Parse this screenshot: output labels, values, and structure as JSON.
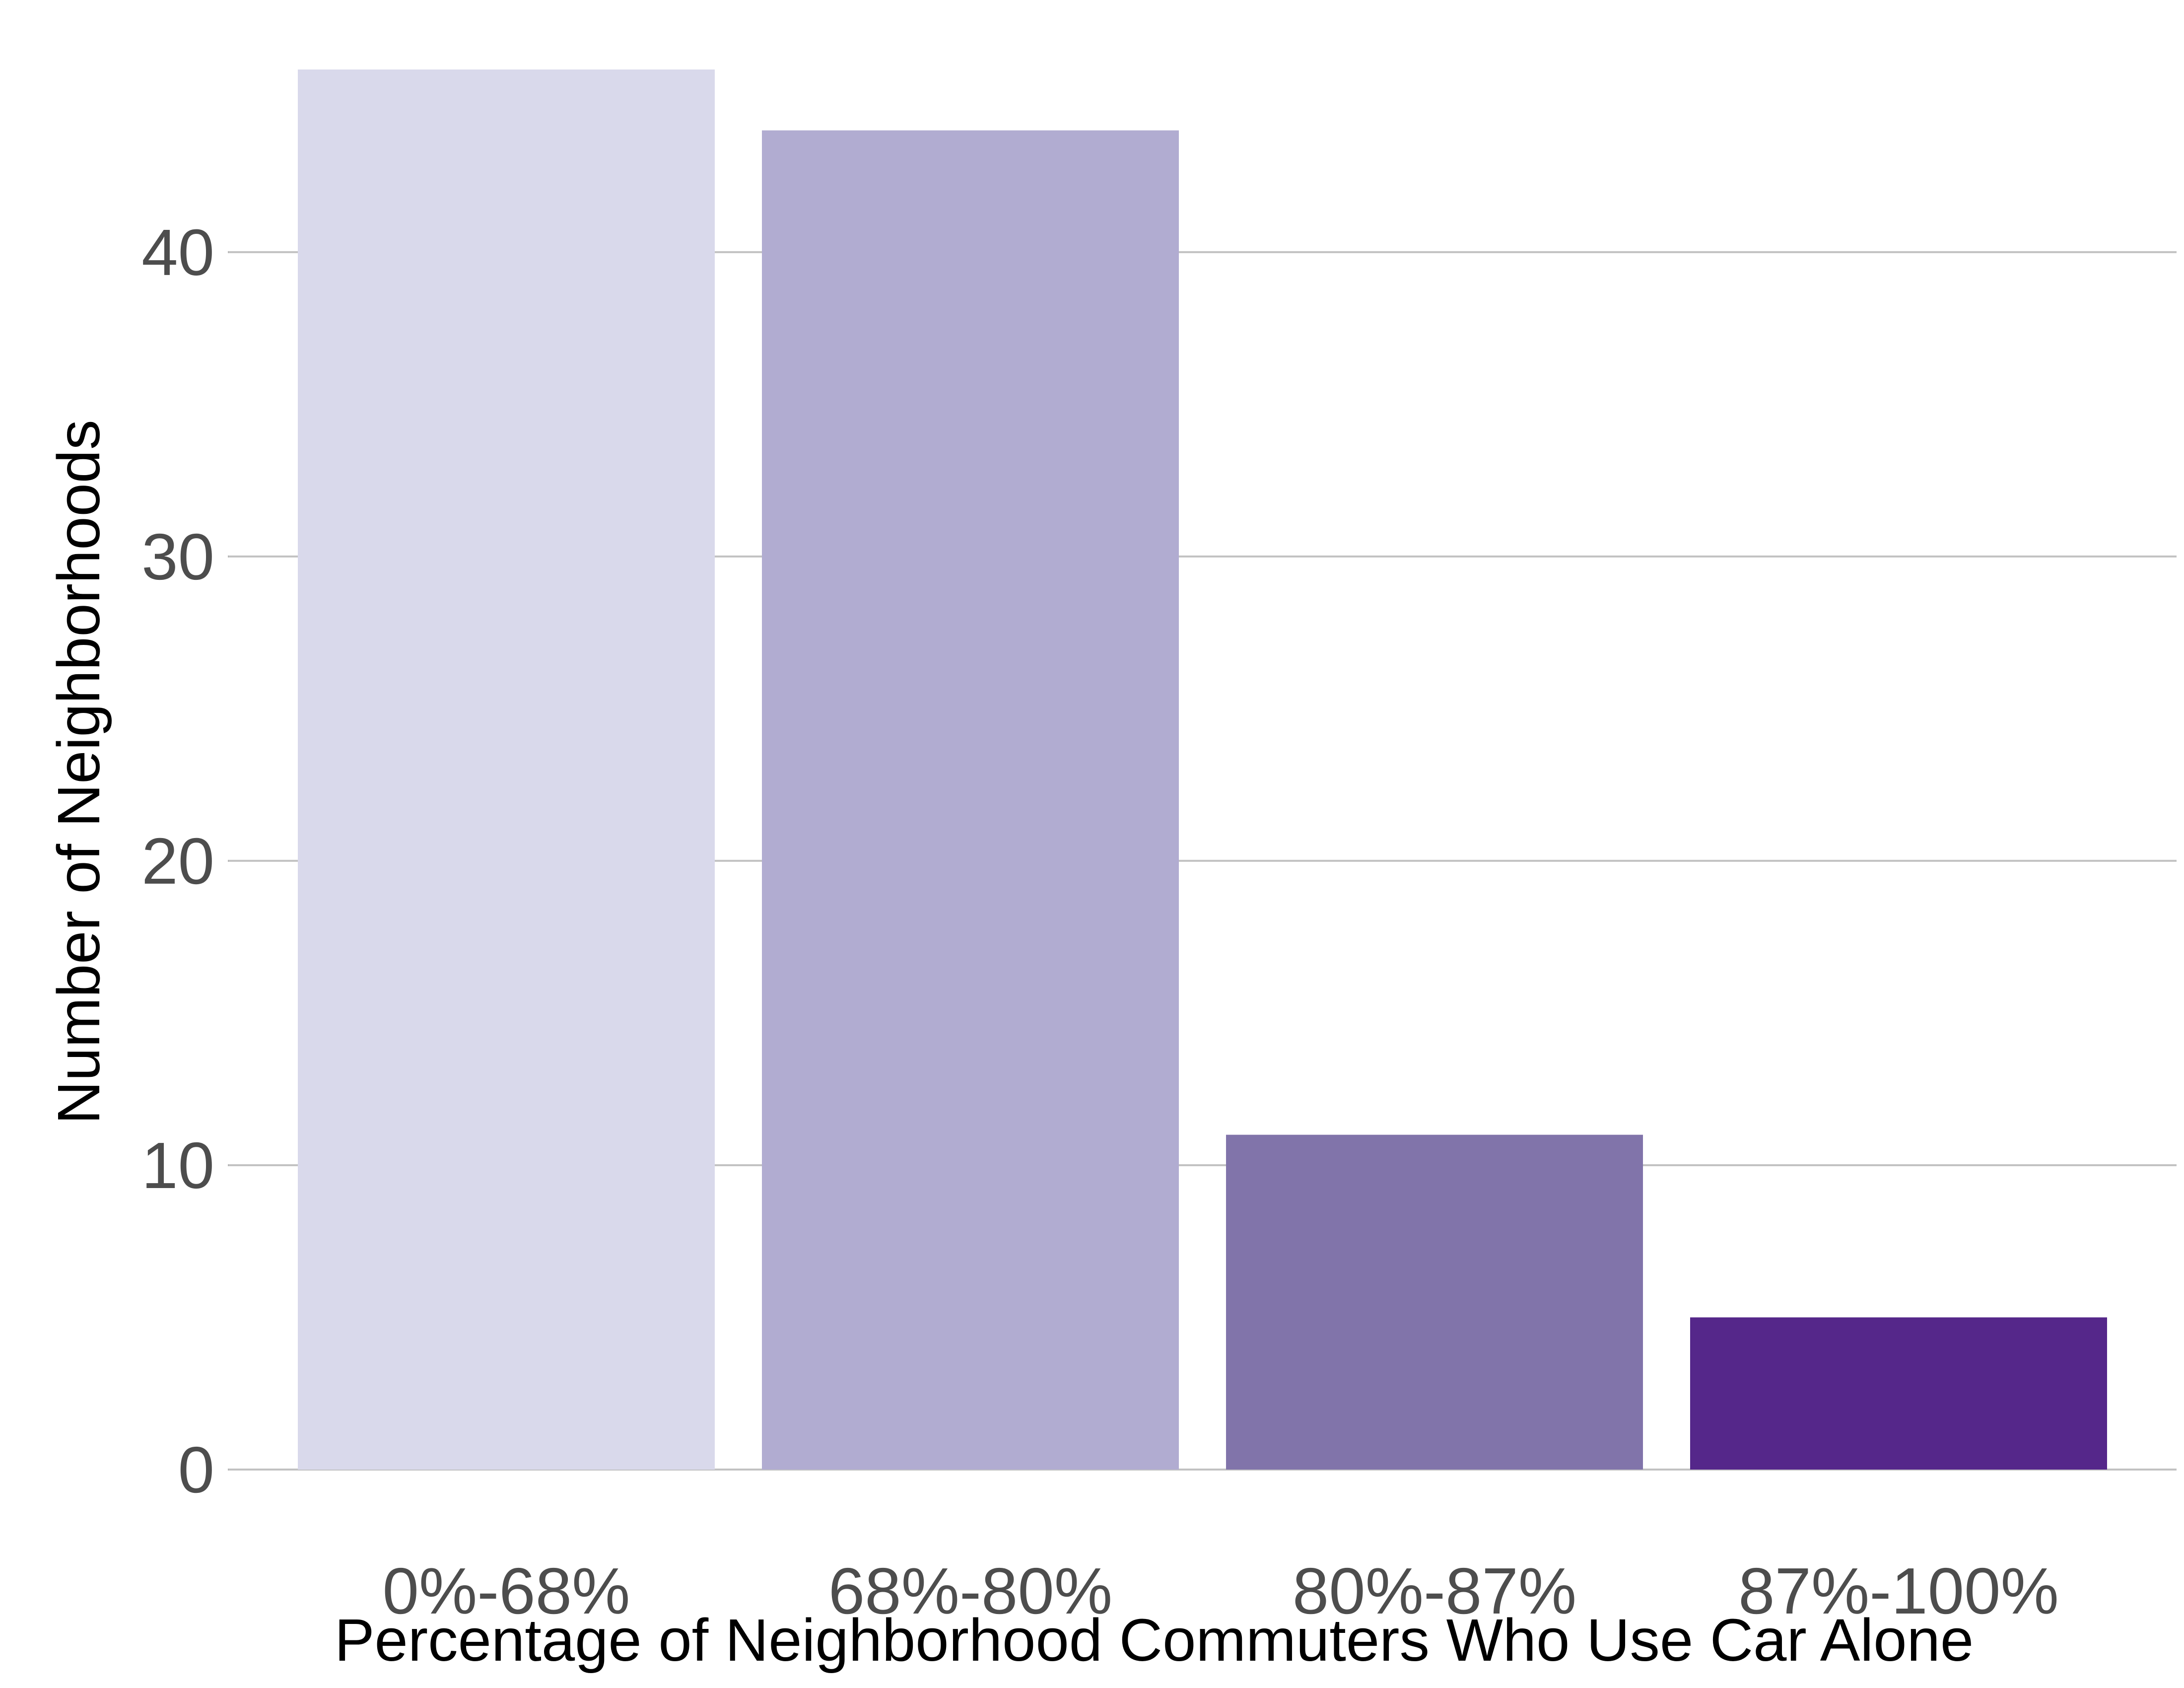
{
  "chart_data": {
    "type": "bar",
    "title": "",
    "xlabel": "Percentage of Neighborhood Commuters Who Use Car Alone",
    "ylabel": "Number of Neighborhoods",
    "categories": [
      "0%-68%",
      "68%-80%",
      "80%-87%",
      "87%-100%"
    ],
    "values": [
      46,
      44,
      11,
      5
    ],
    "colors": [
      "#d9d9eb",
      "#b1acd1",
      "#8174aa",
      "#55278a"
    ],
    "ylim": [
      0,
      46
    ],
    "yticks": [
      0,
      10,
      20,
      30,
      40
    ],
    "grid": true,
    "legend": "none"
  }
}
